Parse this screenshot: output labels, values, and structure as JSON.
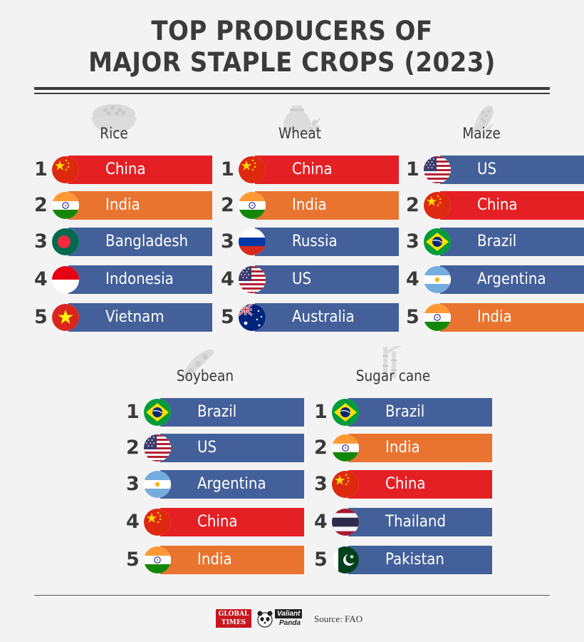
{
  "title": {
    "line1": "TOP PRODUCERS OF",
    "line2": "MAJOR STAPLE CROPS (2023)"
  },
  "colors": {
    "red": "#e42025",
    "orange": "#e87430",
    "blue": "#43609a",
    "text": "#3a3a3a",
    "background": "#f3f3f3"
  },
  "crops": [
    {
      "name": "Rice",
      "icon": "rice-bowl-icon",
      "ranks": [
        {
          "rank": "1",
          "country": "China",
          "flag": "china",
          "color": "red"
        },
        {
          "rank": "2",
          "country": "India",
          "flag": "india",
          "color": "orange"
        },
        {
          "rank": "3",
          "country": "Bangladesh",
          "flag": "bangladesh",
          "color": "blue"
        },
        {
          "rank": "4",
          "country": "Indonesia",
          "flag": "indonesia",
          "color": "blue"
        },
        {
          "rank": "5",
          "country": "Vietnam",
          "flag": "vietnam",
          "color": "blue"
        }
      ]
    },
    {
      "name": "Wheat",
      "icon": "wheat-sack-icon",
      "ranks": [
        {
          "rank": "1",
          "country": "China",
          "flag": "china",
          "color": "red"
        },
        {
          "rank": "2",
          "country": "India",
          "flag": "india",
          "color": "orange"
        },
        {
          "rank": "3",
          "country": "Russia",
          "flag": "russia",
          "color": "blue"
        },
        {
          "rank": "4",
          "country": "US",
          "flag": "us",
          "color": "blue"
        },
        {
          "rank": "5",
          "country": "Australia",
          "flag": "australia",
          "color": "blue"
        }
      ]
    },
    {
      "name": "Maize",
      "icon": "corn-cob-icon",
      "ranks": [
        {
          "rank": "1",
          "country": "US",
          "flag": "us",
          "color": "blue"
        },
        {
          "rank": "2",
          "country": "China",
          "flag": "china",
          "color": "red"
        },
        {
          "rank": "3",
          "country": "Brazil",
          "flag": "brazil",
          "color": "blue"
        },
        {
          "rank": "4",
          "country": "Argentina",
          "flag": "argentina",
          "color": "blue"
        },
        {
          "rank": "5",
          "country": "India",
          "flag": "india",
          "color": "orange"
        }
      ]
    },
    {
      "name": "Soybean",
      "icon": "soybean-pod-icon",
      "ranks": [
        {
          "rank": "1",
          "country": "Brazil",
          "flag": "brazil",
          "color": "blue"
        },
        {
          "rank": "2",
          "country": "US",
          "flag": "us",
          "color": "blue"
        },
        {
          "rank": "3",
          "country": "Argentina",
          "flag": "argentina",
          "color": "blue"
        },
        {
          "rank": "4",
          "country": "China",
          "flag": "china",
          "color": "red"
        },
        {
          "rank": "5",
          "country": "India",
          "flag": "india",
          "color": "orange"
        }
      ]
    },
    {
      "name": "Sugar cane",
      "icon": "sugar-cane-icon",
      "ranks": [
        {
          "rank": "1",
          "country": "Brazil",
          "flag": "brazil",
          "color": "blue"
        },
        {
          "rank": "2",
          "country": "India",
          "flag": "india",
          "color": "orange"
        },
        {
          "rank": "3",
          "country": "China",
          "flag": "china",
          "color": "red"
        },
        {
          "rank": "4",
          "country": "Thailand",
          "flag": "thailand",
          "color": "blue"
        },
        {
          "rank": "5",
          "country": "Pakistan",
          "flag": "pakistan",
          "color": "blue"
        }
      ]
    }
  ],
  "footer": {
    "logo1_line1": "GLOBAL",
    "logo1_line2": "TIMES",
    "logo2_line1": "Valiant",
    "logo2_line2": "Panda",
    "source": "Source: FAO"
  }
}
